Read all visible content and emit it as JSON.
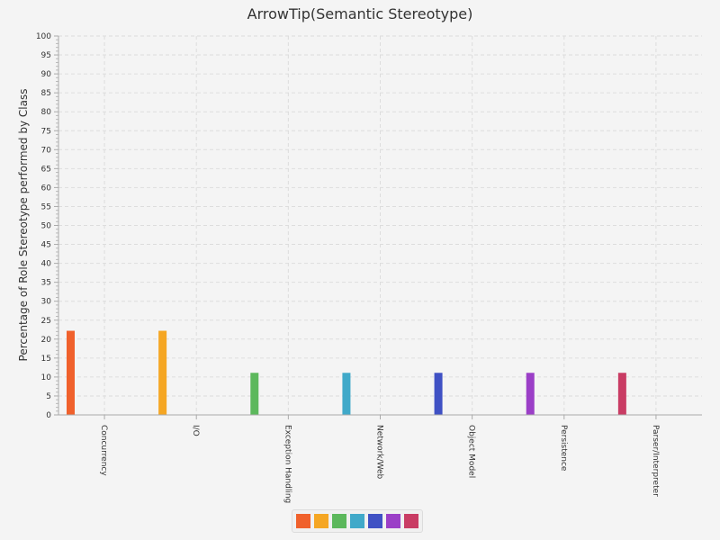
{
  "chart_data": {
    "type": "bar",
    "title": "ArrowTip(Semantic Stereotype)",
    "xlabel": "",
    "ylabel": "Percentage of Role Stereotype performed by Class",
    "ylim": [
      0,
      100
    ],
    "y_ticks": [
      0,
      5,
      10,
      15,
      20,
      25,
      30,
      35,
      40,
      45,
      50,
      55,
      60,
      65,
      70,
      75,
      80,
      85,
      90,
      95,
      100
    ],
    "grid": true,
    "legend_placement": "bottom-center",
    "categories": [
      "Concurrency",
      "I/O",
      "Exception Handling",
      "Network/Web",
      "Object Model",
      "Persistence",
      "Parser/Interpreter"
    ],
    "values": [
      22.2,
      22.2,
      11.1,
      11.1,
      11.1,
      11.1,
      11.1
    ],
    "colors": [
      "#f0612c",
      "#f5a623",
      "#5cb85c",
      "#40a9c9",
      "#3f51c4",
      "#9b3fc7",
      "#c93c64"
    ]
  }
}
